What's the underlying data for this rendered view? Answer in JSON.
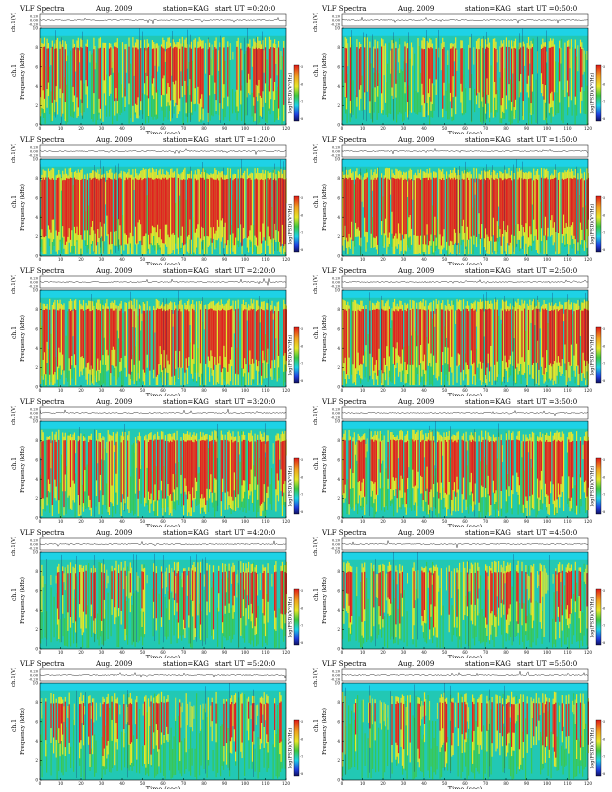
{
  "header": {
    "title": "VLF Spectra",
    "date": "Aug. 2009",
    "station": "station=KAG",
    "start_prefix": "start UT"
  },
  "labels": {
    "ch_axis": "ch.1(V)",
    "freq_axis": "ch.1",
    "freq_axis2": "Frequency (kHz)",
    "time_axis": "Time (sec)",
    "colorbar": "log(PSD)(V²/Hz)"
  },
  "colors": {
    "background": "#22c8b4",
    "green": "#3ec840",
    "yellow": "#e6e62a",
    "red": "#e02020",
    "cyan": "#1ed2e6"
  },
  "chart_data": [
    {
      "type": "heatmap",
      "start_ut": "=0:20:0",
      "xlim": [
        0,
        120
      ],
      "xticks": [
        0,
        10,
        20,
        30,
        40,
        50,
        60,
        70,
        80,
        90,
        100,
        110,
        120
      ],
      "ylim": [
        0,
        10
      ],
      "yticks": [
        0,
        2,
        4,
        6,
        8,
        10
      ],
      "ch_yticks": [
        "0.20",
        "0.00",
        "-0.20"
      ],
      "colorbar_ticks": [
        "-5",
        "-6",
        "-7",
        "-8"
      ],
      "activity": 0.55
    },
    {
      "type": "heatmap",
      "start_ut": "=0:50:0",
      "xlim": [
        0,
        120
      ],
      "xticks": [
        0,
        10,
        20,
        30,
        40,
        50,
        60,
        70,
        80,
        90,
        100,
        110,
        120
      ],
      "ylim": [
        0,
        10
      ],
      "yticks": [
        0,
        2,
        4,
        6,
        8,
        10
      ],
      "ch_yticks": [
        "0.20",
        "0.00",
        "-0.20"
      ],
      "colorbar_ticks": [
        "-5",
        "-6",
        "-7",
        "-8"
      ],
      "activity": 0.5
    },
    {
      "type": "heatmap",
      "start_ut": "=1:20:0",
      "xlim": [
        0,
        120
      ],
      "xticks": [
        0,
        10,
        20,
        30,
        40,
        50,
        60,
        70,
        80,
        90,
        100,
        110,
        120
      ],
      "ylim": [
        0,
        10
      ],
      "yticks": [
        0,
        2,
        4,
        6,
        8,
        10
      ],
      "ch_yticks": [
        "0.20",
        "0.00",
        "-0.20"
      ],
      "colorbar_ticks": [
        "-5",
        "-6",
        "-7",
        "-8"
      ],
      "activity": 0.85
    },
    {
      "type": "heatmap",
      "start_ut": "=1:50:0",
      "xlim": [
        0,
        120
      ],
      "xticks": [
        0,
        10,
        20,
        30,
        40,
        50,
        60,
        70,
        80,
        90,
        100,
        110,
        120
      ],
      "ylim": [
        0,
        10
      ],
      "yticks": [
        0,
        2,
        4,
        6,
        8,
        10
      ],
      "ch_yticks": [
        "0.20",
        "0.00",
        "-0.20"
      ],
      "colorbar_ticks": [
        "-5",
        "-6",
        "-7",
        "-8"
      ],
      "activity": 0.8
    },
    {
      "type": "heatmap",
      "start_ut": "=2:20:0",
      "xlim": [
        0,
        120
      ],
      "xticks": [
        0,
        10,
        20,
        30,
        40,
        50,
        60,
        70,
        80,
        90,
        100,
        110,
        120
      ],
      "ylim": [
        0,
        10
      ],
      "yticks": [
        0,
        2,
        4,
        6,
        8,
        10
      ],
      "ch_yticks": [
        "0.20",
        "0.00",
        "-0.20"
      ],
      "colorbar_ticks": [
        "-5",
        "-6",
        "-7",
        "-8"
      ],
      "activity": 0.75
    },
    {
      "type": "heatmap",
      "start_ut": "=2:50:0",
      "xlim": [
        0,
        120
      ],
      "xticks": [
        0,
        10,
        20,
        30,
        40,
        50,
        60,
        70,
        80,
        90,
        100,
        110,
        120
      ],
      "ylim": [
        0,
        10
      ],
      "yticks": [
        0,
        2,
        4,
        6,
        8,
        10
      ],
      "ch_yticks": [
        "0.20",
        "0.00",
        "-0.20"
      ],
      "colorbar_ticks": [
        "-5",
        "-6",
        "-7",
        "-8"
      ],
      "activity": 0.75
    },
    {
      "type": "heatmap",
      "start_ut": "=3:20:0",
      "xlim": [
        0,
        120
      ],
      "xticks": [
        0,
        10,
        20,
        30,
        40,
        50,
        60,
        70,
        80,
        90,
        100,
        110,
        120
      ],
      "ylim": [
        0,
        10
      ],
      "yticks": [
        0,
        2,
        4,
        6,
        8,
        10
      ],
      "ch_yticks": [
        "0.20",
        "0.00",
        "-0.20"
      ],
      "colorbar_ticks": [
        "-5",
        "-6",
        "-7",
        "-8"
      ],
      "activity": 0.65
    },
    {
      "type": "heatmap",
      "start_ut": "=3:50:0",
      "xlim": [
        0,
        120
      ],
      "xticks": [
        0,
        10,
        20,
        30,
        40,
        50,
        60,
        70,
        80,
        90,
        100,
        110,
        120
      ],
      "ylim": [
        0,
        10
      ],
      "yticks": [
        0,
        2,
        4,
        6,
        8,
        10
      ],
      "ch_yticks": [
        "0.20",
        "0.00",
        "-0.20"
      ],
      "colorbar_ticks": [
        "-5",
        "-6",
        "-7",
        "-8"
      ],
      "activity": 0.6
    },
    {
      "type": "heatmap",
      "start_ut": "=4:20:0",
      "xlim": [
        0,
        120
      ],
      "xticks": [
        0,
        10,
        20,
        30,
        40,
        50,
        60,
        70,
        80,
        90,
        100,
        110,
        120
      ],
      "ylim": [
        0,
        10
      ],
      "yticks": [
        0,
        2,
        4,
        6,
        8,
        10
      ],
      "ch_yticks": [
        "0.20",
        "0.00",
        "-0.20"
      ],
      "colorbar_ticks": [
        "-5",
        "-6",
        "-7",
        "-8"
      ],
      "activity": 0.4
    },
    {
      "type": "heatmap",
      "start_ut": "=4:50:0",
      "xlim": [
        0,
        120
      ],
      "xticks": [
        0,
        10,
        20,
        30,
        40,
        50,
        60,
        70,
        80,
        90,
        100,
        110,
        120
      ],
      "ylim": [
        0,
        10
      ],
      "yticks": [
        0,
        2,
        4,
        6,
        8,
        10
      ],
      "ch_yticks": [
        "0.20",
        "0.00",
        "-0.20"
      ],
      "colorbar_ticks": [
        "-5",
        "-6",
        "-7",
        "-8"
      ],
      "activity": 0.4
    },
    {
      "type": "heatmap",
      "start_ut": "=5:20:0",
      "xlim": [
        0,
        120
      ],
      "xticks": [
        0,
        10,
        20,
        30,
        40,
        50,
        60,
        70,
        80,
        90,
        100,
        110,
        120
      ],
      "ylim": [
        0,
        10
      ],
      "yticks": [
        0,
        2,
        4,
        6,
        8,
        10
      ],
      "ch_yticks": [
        "0.20",
        "0.00",
        "-0.20"
      ],
      "colorbar_ticks": [
        "-5",
        "-6",
        "-7",
        "-8"
      ],
      "activity": 0.35
    },
    {
      "type": "heatmap",
      "start_ut": "=5:50:0",
      "xlim": [
        0,
        120
      ],
      "xticks": [
        0,
        10,
        20,
        30,
        40,
        50,
        60,
        70,
        80,
        90,
        100,
        110,
        120
      ],
      "ylim": [
        0,
        10
      ],
      "yticks": [
        0,
        2,
        4,
        6,
        8,
        10
      ],
      "ch_yticks": [
        "0.20",
        "0.00",
        "-0.20"
      ],
      "colorbar_ticks": [
        "-5",
        "-6",
        "-7",
        "-8"
      ],
      "activity": 0.35
    }
  ]
}
